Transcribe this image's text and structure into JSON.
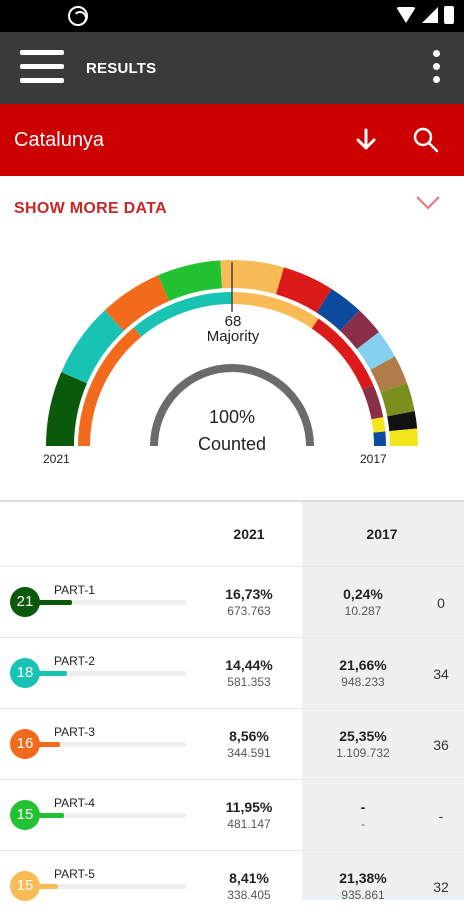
{
  "app_bar": {
    "title": "RESULTS"
  },
  "region": {
    "name": "Catalunya"
  },
  "more_data": {
    "label": "SHOW MORE DATA"
  },
  "gauge": {
    "majority_seats": "68",
    "majority_label": "Majority",
    "counted_pct": "100%",
    "counted_label": "Counted",
    "year_left": "2021",
    "year_right": "2017",
    "outer_ring_colors": [
      "#0b5a0b",
      "#19c3b4",
      "#f26b1d",
      "#22c233",
      "#f9bb56",
      "#dd1a1a",
      "#0b4a9c",
      "#8b2e48",
      "#84d0ee",
      "#b07c48",
      "#7a8e1d",
      "#111111",
      "#f3e61d"
    ],
    "inner_ring_colors": [
      "#f26b1d",
      "#19c3b4",
      "#f9bb56",
      "#dd1a1a",
      "#8b2e48",
      "#f3e61d",
      "#0b4a9c"
    ]
  },
  "table": {
    "col_2021": "2021",
    "col_2017": "2017",
    "rows": [
      {
        "seats": "21",
        "name": "PART-1",
        "color": "#0b5a0b",
        "bar_fraction": 0.17,
        "pct_2021": "16,73%",
        "votes_2021": "673.763",
        "pct_2017": "0,24%",
        "votes_2017": "10.287",
        "seats_2017": "0"
      },
      {
        "seats": "18",
        "name": "PART-2",
        "color": "#19c3b4",
        "bar_fraction": 0.14,
        "pct_2021": "14,44%",
        "votes_2021": "581.353",
        "pct_2017": "21,66%",
        "votes_2017": "948.233",
        "seats_2017": "34"
      },
      {
        "seats": "16",
        "name": "PART-3",
        "color": "#f26b1d",
        "bar_fraction": 0.09,
        "pct_2021": "8,56%",
        "votes_2021": "344.591",
        "pct_2017": "25,35%",
        "votes_2017": "1.109.732",
        "seats_2017": "36"
      },
      {
        "seats": "15",
        "name": "PART-4",
        "color": "#22c233",
        "bar_fraction": 0.12,
        "pct_2021": "11,95%",
        "votes_2021": "481.147",
        "pct_2017": "-",
        "votes_2017": "-",
        "seats_2017": "-"
      },
      {
        "seats": "15",
        "name": "PART-5",
        "color": "#f9bb56",
        "bar_fraction": 0.08,
        "pct_2021": "8,41%",
        "votes_2021": "338.405",
        "pct_2017": "21,38%",
        "votes_2017": "935.861",
        "seats_2017": "32"
      }
    ]
  }
}
